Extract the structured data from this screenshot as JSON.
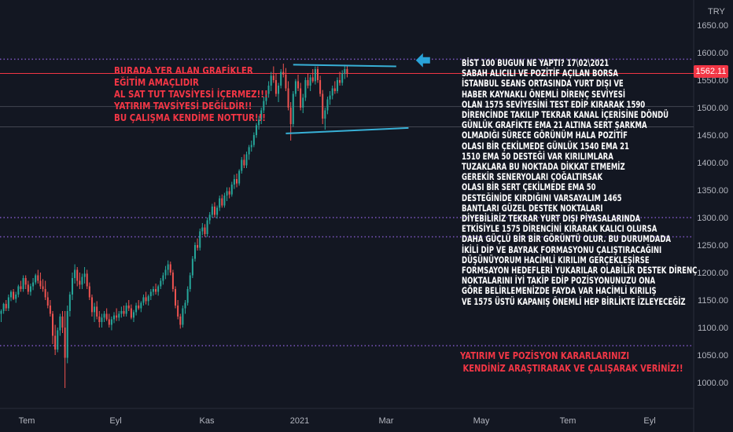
{
  "chart_data": {
    "type": "candlestick",
    "currency": "TRY",
    "last_price": "1562.11",
    "y_ticks": [
      "1650.00",
      "1600.00",
      "1550.00",
      "1500.00",
      "1450.00",
      "1400.00",
      "1350.00",
      "1300.00",
      "1250.00",
      "1200.00",
      "1150.00",
      "1100.00",
      "1050.00",
      "1000.00"
    ],
    "x_ticks": [
      "Tem",
      "Eyl",
      "Kas",
      "2021",
      "Mar",
      "May",
      "Tem",
      "Eyl"
    ],
    "ylim": [
      970,
      1670
    ],
    "grid": false,
    "colors": {
      "up": "#26a69a",
      "down": "#ef5350",
      "background": "#131722",
      "annotation": "#f23645",
      "channel": "#38b0d6",
      "purple_line": "#7e57c2"
    },
    "candles": [
      {
        "o": 1125,
        "h": 1133,
        "l": 1110,
        "c": 1130
      },
      {
        "o": 1130,
        "h": 1145,
        "l": 1125,
        "c": 1143
      },
      {
        "o": 1143,
        "h": 1150,
        "l": 1130,
        "c": 1135
      },
      {
        "o": 1135,
        "h": 1160,
        "l": 1130,
        "c": 1155
      },
      {
        "o": 1155,
        "h": 1168,
        "l": 1148,
        "c": 1165
      },
      {
        "o": 1165,
        "h": 1170,
        "l": 1150,
        "c": 1152
      },
      {
        "o": 1152,
        "h": 1165,
        "l": 1145,
        "c": 1160
      },
      {
        "o": 1160,
        "h": 1178,
        "l": 1155,
        "c": 1175
      },
      {
        "o": 1175,
        "h": 1185,
        "l": 1165,
        "c": 1170
      },
      {
        "o": 1170,
        "h": 1195,
        "l": 1165,
        "c": 1190
      },
      {
        "o": 1190,
        "h": 1195,
        "l": 1170,
        "c": 1178
      },
      {
        "o": 1178,
        "h": 1185,
        "l": 1160,
        "c": 1165
      },
      {
        "o": 1165,
        "h": 1180,
        "l": 1158,
        "c": 1175
      },
      {
        "o": 1175,
        "h": 1190,
        "l": 1168,
        "c": 1182
      },
      {
        "o": 1182,
        "h": 1198,
        "l": 1178,
        "c": 1195
      },
      {
        "o": 1195,
        "h": 1205,
        "l": 1180,
        "c": 1185
      },
      {
        "o": 1185,
        "h": 1200,
        "l": 1170,
        "c": 1175
      },
      {
        "o": 1175,
        "h": 1188,
        "l": 1165,
        "c": 1170
      },
      {
        "o": 1170,
        "h": 1185,
        "l": 1150,
        "c": 1155
      },
      {
        "o": 1155,
        "h": 1165,
        "l": 1135,
        "c": 1140
      },
      {
        "o": 1140,
        "h": 1150,
        "l": 1120,
        "c": 1125
      },
      {
        "o": 1125,
        "h": 1130,
        "l": 1070,
        "c": 1085
      },
      {
        "o": 1085,
        "h": 1105,
        "l": 1050,
        "c": 1060
      },
      {
        "o": 1060,
        "h": 1100,
        "l": 1055,
        "c": 1095
      },
      {
        "o": 1095,
        "h": 1125,
        "l": 1085,
        "c": 1120
      },
      {
        "o": 1120,
        "h": 1130,
        "l": 1090,
        "c": 1100
      },
      {
        "o": 1100,
        "h": 1130,
        "l": 990,
        "c": 1045
      },
      {
        "o": 1045,
        "h": 1140,
        "l": 1035,
        "c": 1130
      },
      {
        "o": 1130,
        "h": 1165,
        "l": 1120,
        "c": 1160
      },
      {
        "o": 1160,
        "h": 1200,
        "l": 1150,
        "c": 1190
      },
      {
        "o": 1190,
        "h": 1215,
        "l": 1180,
        "c": 1205
      },
      {
        "o": 1205,
        "h": 1210,
        "l": 1175,
        "c": 1185
      },
      {
        "o": 1185,
        "h": 1200,
        "l": 1170,
        "c": 1178
      },
      {
        "o": 1178,
        "h": 1198,
        "l": 1170,
        "c": 1192
      },
      {
        "o": 1192,
        "h": 1210,
        "l": 1180,
        "c": 1198
      },
      {
        "o": 1198,
        "h": 1205,
        "l": 1170,
        "c": 1175
      },
      {
        "o": 1175,
        "h": 1182,
        "l": 1150,
        "c": 1155
      },
      {
        "o": 1155,
        "h": 1160,
        "l": 1120,
        "c": 1128
      },
      {
        "o": 1128,
        "h": 1145,
        "l": 1110,
        "c": 1138
      },
      {
        "o": 1138,
        "h": 1148,
        "l": 1115,
        "c": 1120
      },
      {
        "o": 1120,
        "h": 1130,
        "l": 1100,
        "c": 1110
      },
      {
        "o": 1110,
        "h": 1125,
        "l": 1100,
        "c": 1118
      },
      {
        "o": 1118,
        "h": 1130,
        "l": 1110,
        "c": 1125
      },
      {
        "o": 1125,
        "h": 1135,
        "l": 1112,
        "c": 1115
      },
      {
        "o": 1115,
        "h": 1125,
        "l": 1100,
        "c": 1105
      },
      {
        "o": 1105,
        "h": 1120,
        "l": 1095,
        "c": 1115
      },
      {
        "o": 1115,
        "h": 1128,
        "l": 1108,
        "c": 1122
      },
      {
        "o": 1122,
        "h": 1135,
        "l": 1112,
        "c": 1118
      },
      {
        "o": 1118,
        "h": 1130,
        "l": 1112,
        "c": 1125
      },
      {
        "o": 1125,
        "h": 1138,
        "l": 1118,
        "c": 1130
      },
      {
        "o": 1130,
        "h": 1140,
        "l": 1120,
        "c": 1125
      },
      {
        "o": 1125,
        "h": 1145,
        "l": 1120,
        "c": 1140
      },
      {
        "o": 1140,
        "h": 1150,
        "l": 1130,
        "c": 1135
      },
      {
        "o": 1135,
        "h": 1142,
        "l": 1115,
        "c": 1118
      },
      {
        "o": 1118,
        "h": 1132,
        "l": 1110,
        "c": 1128
      },
      {
        "o": 1128,
        "h": 1145,
        "l": 1122,
        "c": 1140
      },
      {
        "o": 1140,
        "h": 1150,
        "l": 1132,
        "c": 1135
      },
      {
        "o": 1135,
        "h": 1148,
        "l": 1128,
        "c": 1145
      },
      {
        "o": 1145,
        "h": 1160,
        "l": 1140,
        "c": 1155
      },
      {
        "o": 1155,
        "h": 1165,
        "l": 1142,
        "c": 1148
      },
      {
        "o": 1148,
        "h": 1160,
        "l": 1140,
        "c": 1157
      },
      {
        "o": 1157,
        "h": 1170,
        "l": 1150,
        "c": 1165
      },
      {
        "o": 1165,
        "h": 1175,
        "l": 1158,
        "c": 1170
      },
      {
        "o": 1170,
        "h": 1180,
        "l": 1160,
        "c": 1165
      },
      {
        "o": 1165,
        "h": 1178,
        "l": 1158,
        "c": 1175
      },
      {
        "o": 1175,
        "h": 1190,
        "l": 1170,
        "c": 1185
      },
      {
        "o": 1185,
        "h": 1200,
        "l": 1178,
        "c": 1195
      },
      {
        "o": 1195,
        "h": 1212,
        "l": 1188,
        "c": 1205
      },
      {
        "o": 1205,
        "h": 1222,
        "l": 1195,
        "c": 1215
      },
      {
        "o": 1215,
        "h": 1220,
        "l": 1195,
        "c": 1200
      },
      {
        "o": 1200,
        "h": 1205,
        "l": 1165,
        "c": 1170
      },
      {
        "o": 1170,
        "h": 1175,
        "l": 1135,
        "c": 1140
      },
      {
        "o": 1140,
        "h": 1150,
        "l": 1115,
        "c": 1120
      },
      {
        "o": 1120,
        "h": 1125,
        "l": 1098,
        "c": 1105
      },
      {
        "o": 1105,
        "h": 1140,
        "l": 1100,
        "c": 1135
      },
      {
        "o": 1135,
        "h": 1150,
        "l": 1125,
        "c": 1145
      },
      {
        "o": 1145,
        "h": 1175,
        "l": 1140,
        "c": 1170
      },
      {
        "o": 1170,
        "h": 1200,
        "l": 1165,
        "c": 1195
      },
      {
        "o": 1195,
        "h": 1230,
        "l": 1190,
        "c": 1225
      },
      {
        "o": 1225,
        "h": 1255,
        "l": 1220,
        "c": 1250
      },
      {
        "o": 1250,
        "h": 1262,
        "l": 1240,
        "c": 1245
      },
      {
        "o": 1245,
        "h": 1280,
        "l": 1240,
        "c": 1275
      },
      {
        "o": 1275,
        "h": 1290,
        "l": 1268,
        "c": 1282
      },
      {
        "o": 1282,
        "h": 1288,
        "l": 1265,
        "c": 1270
      },
      {
        "o": 1270,
        "h": 1300,
        "l": 1265,
        "c": 1295
      },
      {
        "o": 1295,
        "h": 1310,
        "l": 1288,
        "c": 1305
      },
      {
        "o": 1305,
        "h": 1325,
        "l": 1300,
        "c": 1320
      },
      {
        "o": 1320,
        "h": 1328,
        "l": 1300,
        "c": 1305
      },
      {
        "o": 1305,
        "h": 1322,
        "l": 1298,
        "c": 1318
      },
      {
        "o": 1318,
        "h": 1340,
        "l": 1312,
        "c": 1335
      },
      {
        "o": 1335,
        "h": 1342,
        "l": 1318,
        "c": 1322
      },
      {
        "o": 1322,
        "h": 1345,
        "l": 1318,
        "c": 1340
      },
      {
        "o": 1340,
        "h": 1355,
        "l": 1330,
        "c": 1348
      },
      {
        "o": 1348,
        "h": 1355,
        "l": 1335,
        "c": 1342
      },
      {
        "o": 1342,
        "h": 1365,
        "l": 1338,
        "c": 1360
      },
      {
        "o": 1360,
        "h": 1378,
        "l": 1352,
        "c": 1370
      },
      {
        "o": 1370,
        "h": 1380,
        "l": 1355,
        "c": 1362
      },
      {
        "o": 1362,
        "h": 1388,
        "l": 1358,
        "c": 1385
      },
      {
        "o": 1385,
        "h": 1410,
        "l": 1380,
        "c": 1405
      },
      {
        "o": 1405,
        "h": 1415,
        "l": 1390,
        "c": 1395
      },
      {
        "o": 1395,
        "h": 1420,
        "l": 1390,
        "c": 1415
      },
      {
        "o": 1415,
        "h": 1432,
        "l": 1405,
        "c": 1428
      },
      {
        "o": 1428,
        "h": 1440,
        "l": 1420,
        "c": 1432
      },
      {
        "o": 1432,
        "h": 1455,
        "l": 1428,
        "c": 1450
      },
      {
        "o": 1450,
        "h": 1472,
        "l": 1445,
        "c": 1468
      },
      {
        "o": 1468,
        "h": 1485,
        "l": 1460,
        "c": 1478
      },
      {
        "o": 1478,
        "h": 1500,
        "l": 1470,
        "c": 1495
      },
      {
        "o": 1495,
        "h": 1520,
        "l": 1490,
        "c": 1512
      },
      {
        "o": 1512,
        "h": 1530,
        "l": 1505,
        "c": 1525
      },
      {
        "o": 1525,
        "h": 1548,
        "l": 1518,
        "c": 1540
      },
      {
        "o": 1540,
        "h": 1565,
        "l": 1530,
        "c": 1558
      },
      {
        "o": 1558,
        "h": 1575,
        "l": 1545,
        "c": 1550
      },
      {
        "o": 1550,
        "h": 1562,
        "l": 1520,
        "c": 1525
      },
      {
        "o": 1525,
        "h": 1545,
        "l": 1510,
        "c": 1540
      },
      {
        "o": 1540,
        "h": 1570,
        "l": 1535,
        "c": 1565
      },
      {
        "o": 1565,
        "h": 1580,
        "l": 1555,
        "c": 1560
      },
      {
        "o": 1560,
        "h": 1572,
        "l": 1530,
        "c": 1535
      },
      {
        "o": 1535,
        "h": 1548,
        "l": 1495,
        "c": 1500
      },
      {
        "o": 1500,
        "h": 1510,
        "l": 1440,
        "c": 1470
      },
      {
        "o": 1470,
        "h": 1530,
        "l": 1465,
        "c": 1525
      },
      {
        "o": 1525,
        "h": 1552,
        "l": 1520,
        "c": 1548
      },
      {
        "o": 1548,
        "h": 1560,
        "l": 1530,
        "c": 1535
      },
      {
        "o": 1535,
        "h": 1545,
        "l": 1495,
        "c": 1500
      },
      {
        "o": 1500,
        "h": 1525,
        "l": 1490,
        "c": 1518
      },
      {
        "o": 1518,
        "h": 1555,
        "l": 1512,
        "c": 1550
      },
      {
        "o": 1550,
        "h": 1562,
        "l": 1535,
        "c": 1540
      },
      {
        "o": 1540,
        "h": 1560,
        "l": 1530,
        "c": 1555
      },
      {
        "o": 1555,
        "h": 1570,
        "l": 1545,
        "c": 1548
      },
      {
        "o": 1548,
        "h": 1575,
        "l": 1542,
        "c": 1570
      },
      {
        "o": 1570,
        "h": 1575,
        "l": 1545,
        "c": 1550
      },
      {
        "o": 1550,
        "h": 1558,
        "l": 1520,
        "c": 1525
      },
      {
        "o": 1525,
        "h": 1532,
        "l": 1470,
        "c": 1480
      },
      {
        "o": 1480,
        "h": 1500,
        "l": 1460,
        "c": 1495
      },
      {
        "o": 1495,
        "h": 1520,
        "l": 1488,
        "c": 1515
      },
      {
        "o": 1515,
        "h": 1530,
        "l": 1505,
        "c": 1522
      },
      {
        "o": 1522,
        "h": 1540,
        "l": 1515,
        "c": 1535
      },
      {
        "o": 1535,
        "h": 1548,
        "l": 1525,
        "c": 1530
      },
      {
        "o": 1530,
        "h": 1555,
        "l": 1526,
        "c": 1550
      },
      {
        "o": 1550,
        "h": 1565,
        "l": 1540,
        "c": 1545
      },
      {
        "o": 1545,
        "h": 1568,
        "l": 1540,
        "c": 1562
      },
      {
        "o": 1562,
        "h": 1578,
        "l": 1552,
        "c": 1570
      },
      {
        "o": 1570,
        "h": 1575,
        "l": 1555,
        "c": 1562
      }
    ],
    "channel": {
      "upper": [
        {
          "bar": 119,
          "price": 1578
        },
        {
          "bar": 161,
          "price": 1575
        }
      ],
      "lower": [
        {
          "bar": 116,
          "price": 1453
        },
        {
          "bar": 166,
          "price": 1463
        }
      ]
    },
    "horizontal_lines": [
      {
        "price": 1588,
        "style": "dotted",
        "color": "#7e57c2"
      },
      {
        "price": 1562.11,
        "style": "solid",
        "color": "#f23645"
      },
      {
        "price": 1502,
        "style": "solid",
        "color": "#434651"
      },
      {
        "price": 1465,
        "style": "solid",
        "color": "#434651"
      },
      {
        "price": 1300,
        "style": "dotted",
        "color": "#7e57c2"
      },
      {
        "price": 1265,
        "style": "dotted",
        "color": "#7e57c2"
      },
      {
        "price": 1067,
        "style": "dotted",
        "color": "#7e57c2"
      }
    ],
    "arrow": {
      "bar": 169,
      "price": 1576
    },
    "annotations": {
      "left": [
        "BURADA YER ALAN GRAFİKLER",
        "EĞİTİM AMAÇLIDIR",
        "AL SAT TUT TAVSİYESİ İÇERMEZ!!!",
        "YATIRIM TAVSİYESİ DEĞİLDİR!!",
        "BU ÇALIŞMA KENDİME NOTTUR!!!"
      ],
      "right": [
        "BİST 100 BUGUN NE YAPTI? 17\\02\\2021",
        "SABAH ALICILI VE POZİTİF AÇILAN BORSA",
        "İSTANBUL SEANS ORTASINDA YURT DIŞI VE",
        "HABER KAYNAKLI ÖNEMLİ DİRENÇ SEVİYESİ",
        "OLAN 1575 SEVİYESİNİ TEST EDİP KIRARAK 1590",
        "DİRENCİNDE TAKILIP TEKRAR KANAL İÇERİSİNE DÖNDÜ",
        "GÜNLÜK GRAFİKTE EMA 21 ALTINA SERT ŞARKMA",
        "OLMADIĞI SÜRECE GÖRÜNÜM HALA POZİTİF",
        "OLASI BİR ÇEKİLMEDE GÜNLÜK 1540 EMA 21",
        "1510 EMA 50 DESTEĞİ VAR KIRILIMLARA",
        "TUZAKLARA BU NOKTADA DİKKAT ETMEMİZ",
        "GEREKİR SENERYOLARI ÇOĞALTIRSAK",
        "OLASI BİR SERT ÇEKİLMEDE EMA 50",
        "DESTEĞİNİDE KIRDIĞINI VARSAYALIM 1465",
        "BANTLARI GÜZEL DESTEK NOKTALARI",
        "DİYEBİLİRİZ TEKRAR YURT DIŞI PİYASALARINDA",
        "ETKİSİYLE 1575 DİRENCİNİ KIRARAK KALICI OLURSA",
        "DAHA GÜÇLÜ BİR BİR GÖRÜNTÜ OLUR. BU DURUMDADA",
        "İKİLİ DİP VE BAYRAK FORMASYONU ÇALIŞTIRACAĞINI",
        "DÜŞÜNÜYORUM HACİMLİ KIRILIM GERÇEKLEŞİRSE",
        "FORMSAYON HEDEFLERİ YUKARILAR OLABİLİR DESTEK DİRENÇ",
        "NOKTALARINI İYİ TAKİP EDİP POZİSYONUNUZU ONA",
        "GÖRE BELİRLEMENİZDE FAYDA VAR HACİMLİ KIRILIŞ",
        "VE 1575 ÜSTÜ KAPANIŞ ÖNEMLİ HEP BİRLİKTE İZLEYECEĞİZ"
      ],
      "bottom": [
        "YATIRIM VE POZİSYON KARARLARINIZI",
        " KENDİNİZ ARAŞTIRARAK VE ÇALIŞARAK VERİNİZ!!"
      ]
    }
  }
}
